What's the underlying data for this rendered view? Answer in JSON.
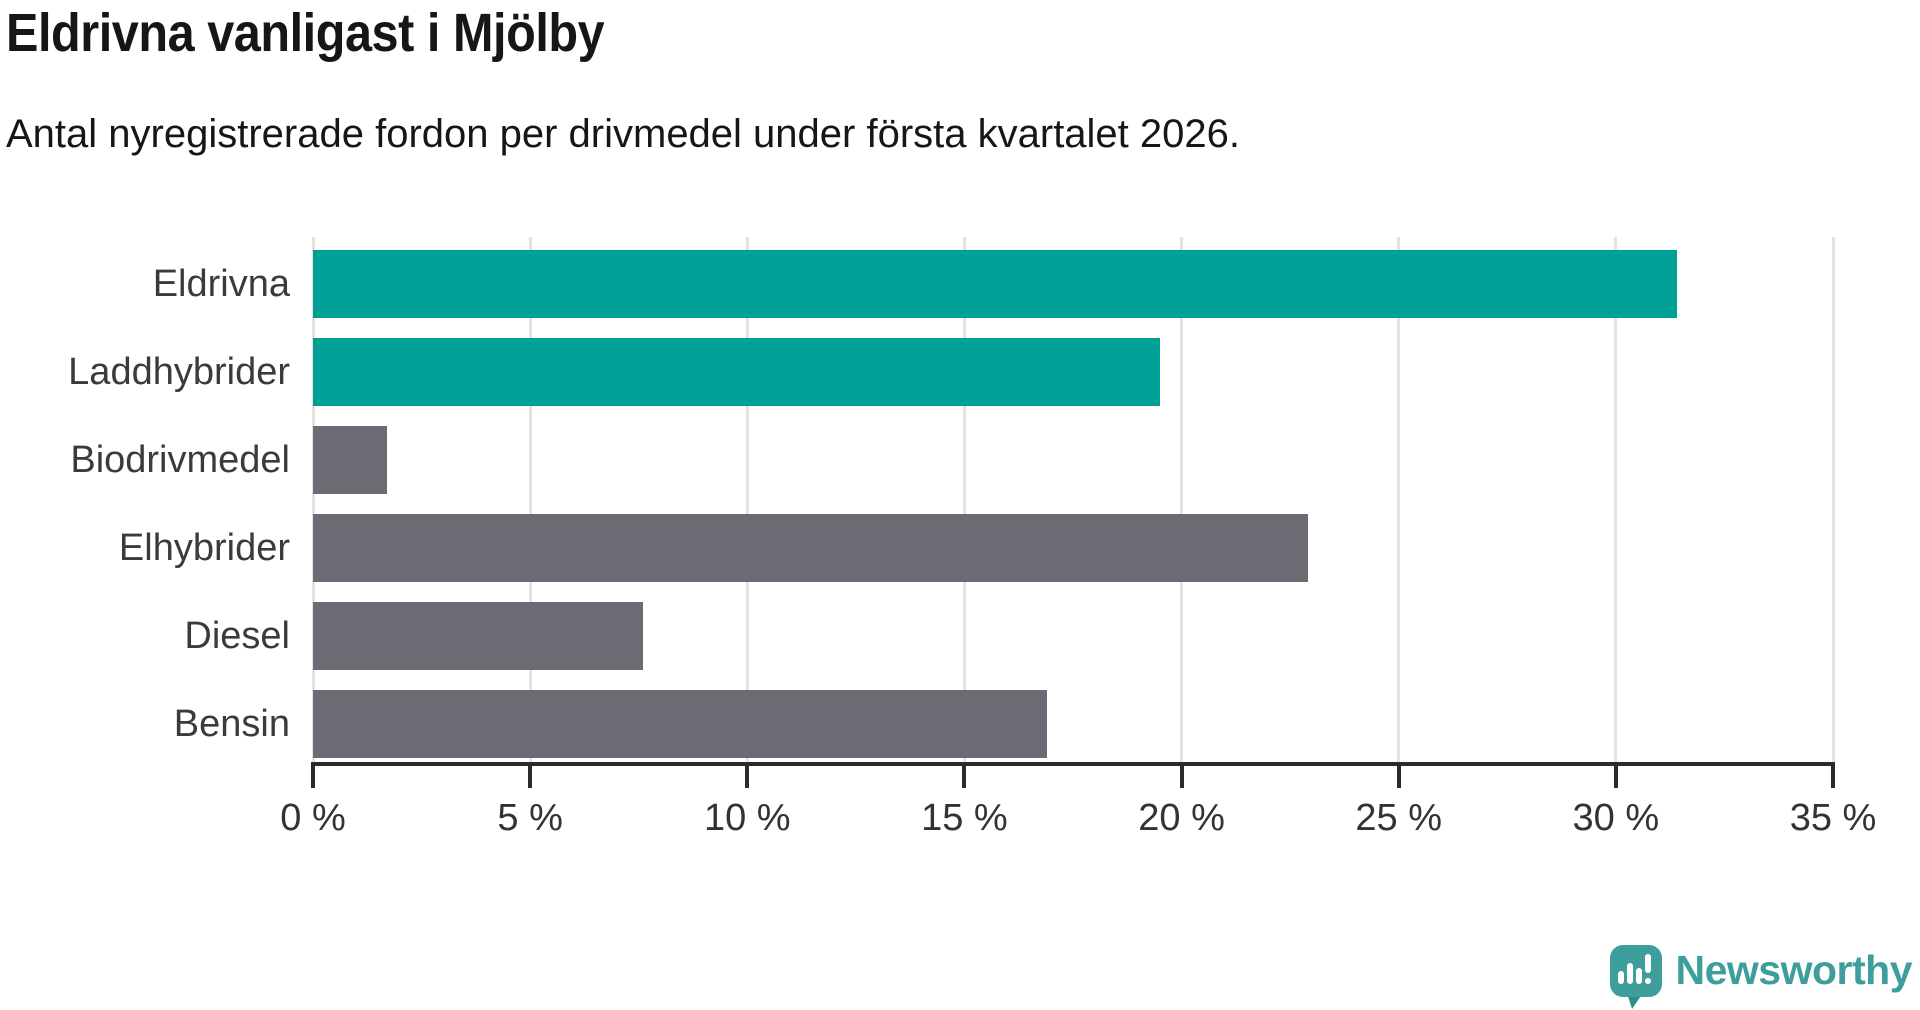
{
  "chart_data": {
    "type": "bar",
    "orientation": "horizontal",
    "title": "Eldrivna vanligast i Mjölby",
    "subtitle": "Antal nyregistrerade fordon per drivmedel under första kvartalet 2026.",
    "categories": [
      "Eldrivna",
      "Laddhybrider",
      "Biodrivmedel",
      "Elhybrider",
      "Diesel",
      "Bensin"
    ],
    "values": [
      31.4,
      19.5,
      1.7,
      22.9,
      7.6,
      16.9
    ],
    "unit": "%",
    "bar_colors": [
      "#00a096",
      "#00a096",
      "#6c6a72",
      "#6c6a72",
      "#6c6a72",
      "#6c6a72"
    ],
    "highlight_color": "#00a096",
    "default_color": "#6c6a72",
    "xlim": [
      0,
      35
    ],
    "x_ticks": [
      0,
      5,
      10,
      15,
      20,
      25,
      30,
      35
    ],
    "x_tick_labels": [
      "0 %",
      "5 %",
      "10 %",
      "15 %",
      "20 %",
      "25 %",
      "30 %",
      "35 %"
    ],
    "grid": "vertical",
    "gridline_color": "#e3e3e3",
    "axis_color": "#2b2b2b",
    "legend": "none"
  },
  "branding": {
    "wordmark": "Newsworthy",
    "icon": "newsworthy-speech-bubble-chart-icon",
    "color": "#3e9e9b",
    "icon_tail_color": "#2f8d8b"
  }
}
